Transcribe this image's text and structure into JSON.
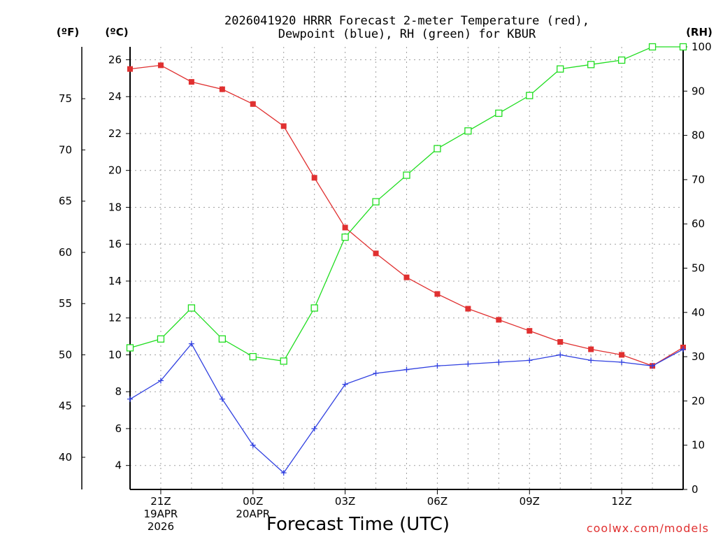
{
  "chart_data": {
    "type": "line",
    "title": [
      "2026041920 HRRR Forecast 2-meter Temperature (red),",
      "Dewpoint (blue), RH (green) for KBUR"
    ],
    "xlabel": "Forecast Time (UTC)",
    "units": {
      "fahrenheit": "(ºF)",
      "celsius": "(ºC)",
      "rh": "(RH)"
    },
    "credit": "coolwx.com/models",
    "x_hours": [
      0,
      1,
      2,
      3,
      4,
      5,
      6,
      7,
      8,
      9,
      10,
      11,
      12,
      13,
      14,
      15,
      16,
      17,
      18
    ],
    "x_ticks": [
      {
        "hour": 1,
        "lines": [
          "21Z",
          "19APR",
          "2026"
        ]
      },
      {
        "hour": 4,
        "lines": [
          "00Z",
          "20APR"
        ]
      },
      {
        "hour": 7,
        "lines": [
          "03Z"
        ]
      },
      {
        "hour": 10,
        "lines": [
          "06Z"
        ]
      },
      {
        "hour": 13,
        "lines": [
          "09Z"
        ]
      },
      {
        "hour": 16,
        "lines": [
          "12Z"
        ]
      }
    ],
    "celsius_axis": {
      "range": [
        2.7,
        26.7
      ],
      "ticks": [
        4,
        6,
        8,
        10,
        12,
        14,
        16,
        18,
        20,
        22,
        24,
        26
      ]
    },
    "fahrenheit_axis": {
      "ticks": [
        40,
        45,
        50,
        55,
        60,
        65,
        70,
        75
      ]
    },
    "rh_axis": {
      "range": [
        0,
        100
      ],
      "ticks": [
        0,
        10,
        20,
        30,
        40,
        50,
        60,
        70,
        80,
        90,
        100
      ]
    },
    "series": [
      {
        "name": "2-meter Temperature",
        "unit": "C",
        "color": "#e03030",
        "marker": "filled-square",
        "values": [
          25.5,
          25.7,
          24.8,
          24.4,
          23.6,
          22.4,
          19.6,
          16.9,
          15.5,
          14.2,
          13.3,
          12.5,
          11.9,
          11.3,
          10.7,
          10.3,
          10.0,
          9.4,
          10.4
        ]
      },
      {
        "name": "Dewpoint",
        "unit": "C",
        "color": "#3040e0",
        "marker": "plus",
        "values": [
          7.6,
          8.6,
          10.6,
          7.6,
          5.1,
          3.6,
          6.0,
          8.4,
          9.0,
          9.2,
          9.4,
          9.5,
          9.6,
          9.7,
          10.0,
          9.7,
          9.6,
          9.4,
          10.3
        ]
      },
      {
        "name": "RH",
        "unit": "%",
        "color": "#20dd20",
        "marker": "open-square",
        "values": [
          32,
          34,
          41,
          34,
          30,
          29,
          41,
          57,
          65,
          71,
          77,
          81,
          85,
          89,
          95,
          96,
          97,
          100,
          100
        ]
      }
    ]
  }
}
